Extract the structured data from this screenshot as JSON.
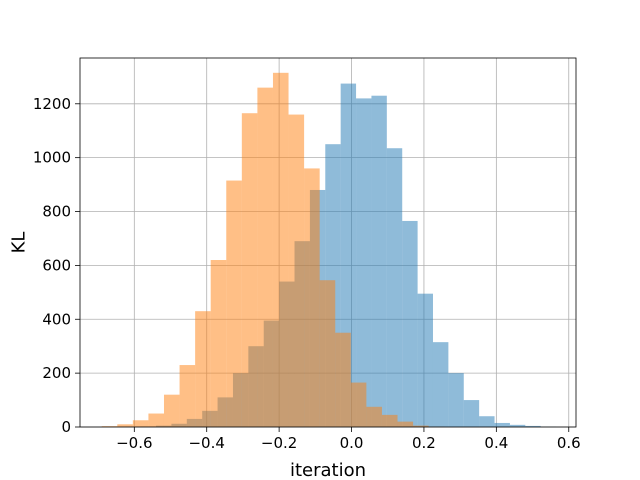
{
  "chart_data": {
    "type": "bar",
    "title": "",
    "xlabel": "iteration",
    "ylabel": "KL",
    "xlim": [
      -0.75,
      0.62
    ],
    "ylim": [
      0,
      1370
    ],
    "xticks": [
      -0.6,
      -0.4,
      -0.2,
      0.0,
      0.2,
      0.4,
      0.6
    ],
    "xtick_labels": [
      "−0.6",
      "−0.4",
      "−0.2",
      "0.0",
      "0.2",
      "0.4",
      "0.6"
    ],
    "yticks": [
      0,
      200,
      400,
      600,
      800,
      1000,
      1200
    ],
    "ytick_labels": [
      "0",
      "200",
      "400",
      "600",
      "800",
      "1000",
      "1200"
    ],
    "grid": true,
    "legend": "none",
    "series": [
      {
        "color": "#1f77b4",
        "opacity": 0.5,
        "bin_start": -0.625,
        "bin_width": 0.0425,
        "values": [
          1,
          2,
          5,
          12,
          30,
          60,
          110,
          200,
          300,
          395,
          540,
          690,
          880,
          1050,
          1275,
          1220,
          1230,
          1035,
          765,
          495,
          315,
          200,
          100,
          40,
          15,
          8,
          4,
          1
        ]
      },
      {
        "color": "#ff7f0e",
        "opacity": 0.5,
        "bin_start": -0.69,
        "bin_width": 0.043,
        "values": [
          3,
          10,
          25,
          50,
          120,
          230,
          430,
          620,
          915,
          1165,
          1260,
          1315,
          1160,
          960,
          545,
          350,
          165,
          75,
          45,
          20,
          5,
          1
        ]
      }
    ]
  }
}
